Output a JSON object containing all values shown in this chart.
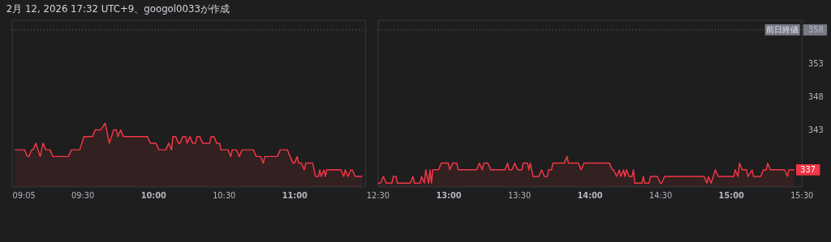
{
  "chart_data": [
    {
      "type": "area",
      "title": "2月 12, 2026 17:32 UTC+9、googol0033が作成",
      "tick_labels": "x",
      "x": [
        9.02,
        9.09,
        9.11,
        9.12,
        9.14,
        9.15,
        9.17,
        9.2,
        9.22,
        9.24,
        9.27,
        9.29,
        9.4,
        9.42,
        9.48,
        9.51,
        9.57,
        9.59,
        9.63,
        9.66,
        9.69,
        9.72,
        9.74,
        9.75,
        9.77,
        9.79,
        9.96,
        9.98,
        10.02,
        10.04,
        10.09,
        10.11,
        10.13,
        10.14,
        10.16,
        10.18,
        10.19,
        10.21,
        10.23,
        10.24,
        10.26,
        10.28,
        10.3,
        10.31,
        10.33,
        10.35,
        10.4,
        10.41,
        10.43,
        10.45,
        10.47,
        10.48,
        10.53,
        10.55,
        10.56,
        10.59,
        10.61,
        10.63,
        10.71,
        10.73,
        10.76,
        10.78,
        10.79,
        10.88,
        10.9,
        10.95,
        10.99,
        11.0,
        11.02,
        11.03,
        11.05,
        11.07,
        11.08,
        11.13,
        11.15,
        11.17,
        11.18,
        11.19,
        11.21,
        11.22,
        11.23,
        11.33,
        11.35,
        11.36,
        11.38,
        11.4,
        11.41,
        11.43,
        11.48
      ],
      "series": [
        {
          "color": "#f23645",
          "values": [
            340,
            340,
            339,
            339,
            340,
            340,
            341,
            339,
            341,
            340,
            340,
            339,
            339,
            340,
            340,
            342,
            342,
            343,
            343,
            344,
            341,
            343,
            343,
            342,
            343,
            342,
            342,
            341,
            341,
            340,
            340,
            341,
            340,
            342,
            342,
            341,
            341,
            342,
            342,
            341,
            342,
            341,
            341,
            342,
            342,
            341,
            341,
            342,
            342,
            341,
            341,
            340,
            340,
            339,
            340,
            340,
            339,
            340,
            340,
            339,
            339,
            338,
            339,
            339,
            340,
            340,
            338,
            338,
            339,
            338,
            338,
            337,
            338,
            338,
            336,
            336,
            337,
            336,
            337,
            336,
            337,
            337,
            336,
            337,
            336,
            337,
            337,
            336,
            336
          ]
        }
      ],
      "xlim": [
        9.0,
        11.5
      ],
      "ylim": [
        334.5,
        359.5
      ],
      "xticks": [
        {
          "value": 9.0833,
          "label": "09:05"
        },
        {
          "value": 9.5,
          "label": "09:30"
        },
        {
          "value": 10,
          "label": "10:00"
        },
        {
          "value": 10.5,
          "label": "10:30"
        },
        {
          "value": 11,
          "label": "11:00"
        }
      ],
      "ref_lines": [
        {
          "axis": "y",
          "value": 358,
          "color": "#787b86",
          "line_style": "dotted"
        }
      ]
    },
    {
      "type": "area",
      "tick_labels": true,
      "x": [
        12.5,
        12.52,
        12.54,
        12.56,
        12.6,
        12.61,
        12.63,
        12.64,
        12.73,
        12.75,
        12.76,
        12.8,
        12.81,
        12.83,
        12.84,
        12.86,
        12.87,
        12.88,
        12.89,
        12.93,
        12.95,
        13.0,
        13.01,
        13.03,
        13.06,
        13.07,
        13.09,
        13.2,
        13.22,
        13.24,
        13.25,
        13.28,
        13.3,
        13.4,
        13.42,
        13.43,
        13.45,
        13.47,
        13.49,
        13.52,
        13.53,
        13.56,
        13.57,
        13.58,
        13.6,
        13.64,
        13.66,
        13.68,
        13.7,
        13.71,
        13.73,
        13.74,
        13.82,
        13.84,
        13.85,
        13.92,
        13.94,
        13.96,
        14.14,
        14.16,
        14.17,
        14.19,
        14.21,
        14.22,
        14.24,
        14.25,
        14.26,
        14.28,
        14.3,
        14.31,
        14.32,
        14.37,
        14.38,
        14.39,
        14.42,
        14.43,
        14.48,
        14.5,
        14.51,
        14.53,
        14.81,
        14.83,
        14.84,
        14.86,
        14.89,
        14.91,
        15.02,
        15.03,
        15.05,
        15.06,
        15.08,
        15.11,
        15.12,
        15.15,
        15.16,
        15.21,
        15.23,
        15.25,
        15.26,
        15.28,
        15.38,
        15.4,
        15.41,
        15.45
      ],
      "series": [
        {
          "color": "#f23645",
          "values": [
            335,
            335,
            336,
            335,
            335,
            336,
            336,
            335,
            335,
            336,
            335,
            335,
            336,
            335,
            337,
            335,
            337,
            335,
            337,
            337,
            338,
            338,
            337,
            338,
            338,
            337,
            337,
            337,
            338,
            337,
            338,
            338,
            337,
            337,
            338,
            337,
            337,
            338,
            337,
            337,
            338,
            338,
            337,
            338,
            336,
            336,
            337,
            336,
            336,
            337,
            337,
            338,
            338,
            339,
            338,
            338,
            337,
            338,
            338,
            337,
            337,
            336,
            337,
            336,
            337,
            336,
            337,
            336,
            336,
            337,
            335,
            335,
            336,
            335,
            335,
            336,
            336,
            335,
            335,
            336,
            336,
            335,
            336,
            335,
            337,
            336,
            336,
            337,
            336,
            338,
            337,
            337,
            336,
            337,
            336,
            336,
            337,
            337,
            338,
            337,
            337,
            336,
            337,
            337
          ]
        }
      ],
      "xlim": [
        12.5,
        15.5
      ],
      "ylim": [
        334.5,
        359.5
      ],
      "xticks": [
        {
          "value": 12.5,
          "label": "12:30"
        },
        {
          "value": 13,
          "label": "13:00"
        },
        {
          "value": 13.5,
          "label": "13:30"
        },
        {
          "value": 14,
          "label": "14:00"
        },
        {
          "value": 14.5,
          "label": "14:30"
        },
        {
          "value": 15,
          "label": "15:00"
        },
        {
          "value": 15.5,
          "label": "15:30"
        }
      ],
      "yticks": [
        343,
        348,
        353,
        358
      ],
      "ref_lines": [
        {
          "axis": "y",
          "value": 358,
          "label": "前日終値",
          "color": "#787b86",
          "line_style": "dotted"
        }
      ],
      "annotations": [
        {
          "text": "337",
          "x": 15.45,
          "y": 337
        }
      ]
    }
  ]
}
